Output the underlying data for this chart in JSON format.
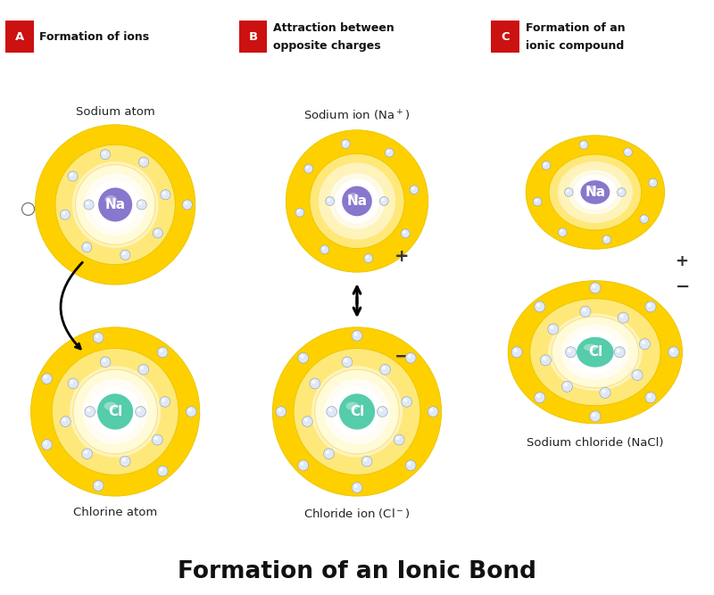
{
  "bg_color": "#ffffff",
  "title": "Formation of an Ionic Bond",
  "title_fontsize": 19,
  "label_A": "A",
  "label_B": "B",
  "label_C": "C",
  "label_A_text": "Formation of ions",
  "label_B_text": "Attraction between\nopposite charges",
  "label_C_text": "Formation of an\nionic compound",
  "na_color_outer": "#8877cc",
  "na_color_inner": "#6655bb",
  "cl_color_outer": "#55ccaa",
  "cl_color_inner": "#33aa88",
  "electron_color": "#e0e8f8",
  "electron_stroke": "#9aaabb",
  "shell_gold": "#ffd700",
  "shell_lightyellow": "#fffde0",
  "arrow_color": "#111111",
  "red_label_bg": "#cc1111",
  "label_text_color": "#ffffff",
  "subtitle_color": "#222222",
  "plus_minus_color": "#333333"
}
